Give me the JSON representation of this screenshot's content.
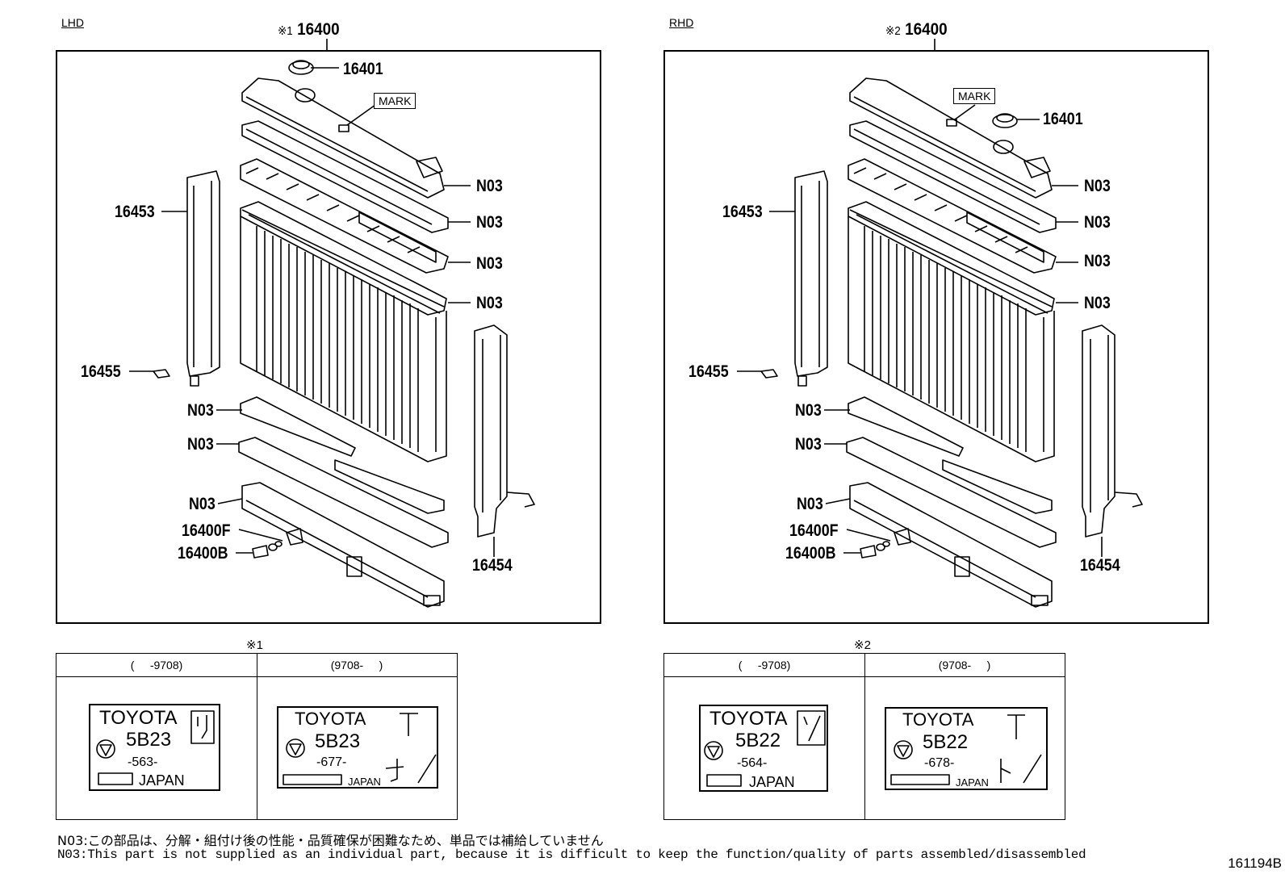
{
  "lhd": {
    "side_label": "LHD",
    "assembly_ref": "※1",
    "assembly_no": "16400",
    "mark": "MARK",
    "parts": {
      "cap": "16401",
      "left_support": "16453",
      "bolt": "16455",
      "n03_a": "N03",
      "n03_b": "N03",
      "n03_c": "N03",
      "n03_d": "N03",
      "n03_e": "N03",
      "n03_f": "N03",
      "n03_g": "N03",
      "drain_f": "16400F",
      "drain_b": "16400B",
      "right_support": "16454"
    }
  },
  "rhd": {
    "side_label": "RHD",
    "assembly_ref": "※2",
    "assembly_no": "16400",
    "mark": "MARK",
    "parts": {
      "cap": "16401",
      "left_support": "16453",
      "bolt": "16455",
      "n03_a": "N03",
      "n03_b": "N03",
      "n03_c": "N03",
      "n03_d": "N03",
      "n03_e": "N03",
      "n03_f": "N03",
      "n03_g": "N03",
      "drain_f": "16400F",
      "drain_b": "16400B",
      "right_support": "16454"
    }
  },
  "table1": {
    "ref": "※1",
    "col1_header": "(     -9708)",
    "col2_header": "(9708-     )",
    "plate1": {
      "brand": "TOYOTA",
      "model": "5B23",
      "code": "-563-",
      "origin": "JAPAN"
    },
    "plate2": {
      "brand": "TOYOTA",
      "model": "5B23",
      "code": "-677-",
      "origin": "JAPAN"
    }
  },
  "table2": {
    "ref": "※2",
    "col1_header": "(     -9708)",
    "col2_header": "(9708-     )",
    "plate1": {
      "brand": "TOYOTA",
      "model": "5B22",
      "code": "-564-",
      "origin": "JAPAN"
    },
    "plate2": {
      "brand": "TOYOTA",
      "model": "5B22",
      "code": "-678-",
      "origin": "JAPAN"
    }
  },
  "notes": {
    "jp": "N03:この部品は、分解・組付け後の性能・品質確保が困難なため、単品では補給していません",
    "en": "N03:This part is not supplied as an individual part, because it is difficult to keep the function/quality of parts assembled/disassembled"
  },
  "diagram_id": "161194B"
}
